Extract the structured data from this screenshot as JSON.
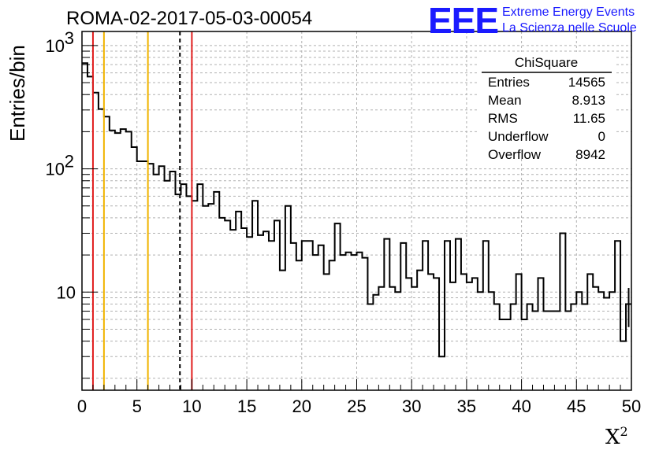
{
  "chart_data": {
    "type": "histogram",
    "title": "ROMA-02-2017-05-03-00054",
    "xlabel": "X",
    "xlabel_superscript": "2",
    "ylabel": "Entries/bin",
    "xlim": [
      0,
      50
    ],
    "ylim": [
      1.6,
      1300
    ],
    "y_scale": "log",
    "grid": true,
    "x_ticks": [
      0,
      5,
      10,
      15,
      20,
      25,
      30,
      35,
      40,
      45,
      50
    ],
    "x_tick_labels": [
      "0",
      "5",
      "10",
      "15",
      "20",
      "25",
      "30",
      "35",
      "40",
      "45",
      "50"
    ],
    "y_ticks": [
      10,
      100,
      1000
    ],
    "y_tick_labels": [
      "10",
      "10",
      "10"
    ],
    "y_tick_exponents": [
      "",
      "2",
      "3"
    ],
    "bin_width": 0.5,
    "values": [
      720,
      560,
      415,
      305,
      265,
      205,
      195,
      210,
      200,
      150,
      115,
      115,
      110,
      90,
      105,
      80,
      95,
      62,
      75,
      60,
      55,
      75,
      50,
      52,
      65,
      40,
      38,
      32,
      45,
      33,
      28,
      55,
      29,
      31,
      26,
      38,
      15,
      50,
      25,
      18,
      26,
      26,
      20,
      24,
      14,
      18,
      36,
      20,
      21,
      20,
      21,
      19,
      8,
      9.5,
      11,
      27,
      11,
      10,
      25,
      13,
      11,
      15,
      26,
      14,
      13,
      3,
      26,
      12,
      27,
      14,
      12,
      13,
      10,
      26,
      10,
      8,
      6,
      6,
      8,
      14,
      6,
      8,
      7,
      13,
      7,
      7,
      7,
      30,
      7,
      8,
      10,
      8,
      14,
      11,
      10,
      9,
      10,
      26,
      4,
      8
    ],
    "lines": [
      {
        "x": 1,
        "color": "#e11d1d",
        "style": "solid"
      },
      {
        "x": 2,
        "color": "#f0b400",
        "style": "solid"
      },
      {
        "x": 6,
        "color": "#f0b400",
        "style": "solid"
      },
      {
        "x": 8.913,
        "color": "#000000",
        "style": "dashed"
      },
      {
        "x": 10,
        "color": "#e11d1d",
        "style": "solid"
      }
    ],
    "series_color": "#000000"
  },
  "stats": {
    "title": "ChiSquare",
    "rows": [
      {
        "label": "Entries",
        "value": "14565"
      },
      {
        "label": "Mean",
        "value": "8.913"
      },
      {
        "label": "RMS",
        "value": "11.65"
      },
      {
        "label": "Underflow",
        "value": "0"
      },
      {
        "label": "Overflow",
        "value": "8942"
      }
    ]
  },
  "logo": {
    "mark": "EEE",
    "line1": "Extreme Energy Events",
    "line2": "La Scienza nelle Scuole",
    "color": "#1a1aff"
  }
}
